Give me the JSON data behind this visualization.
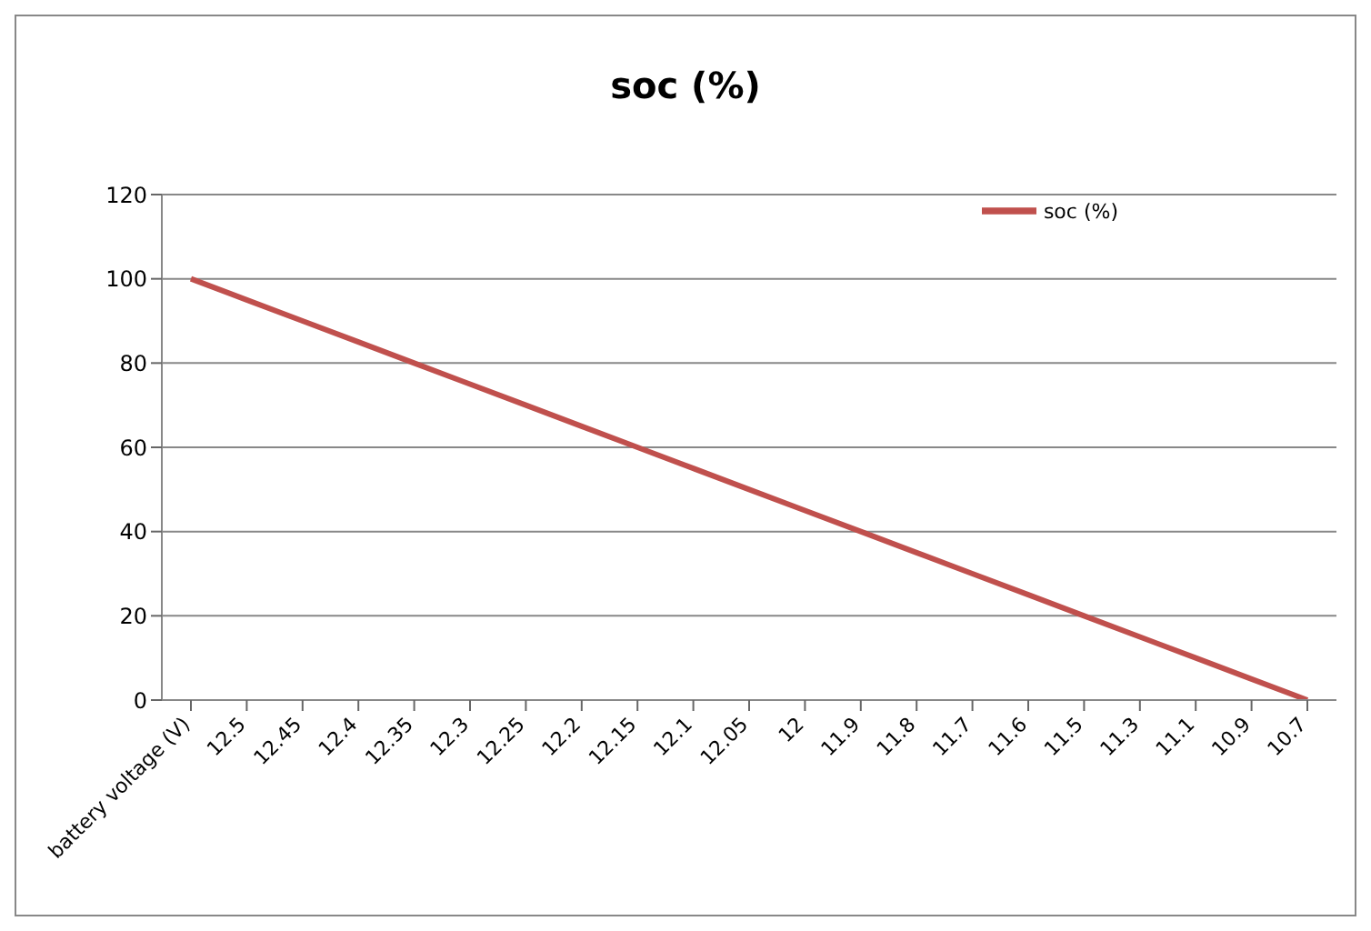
{
  "chart_data": {
    "type": "line",
    "title": "soc (%)",
    "categories": [
      "battery voltage (V)",
      "12.5",
      "12.45",
      "12.4",
      "12.35",
      "12.3",
      "12.25",
      "12.2",
      "12.15",
      "12.1",
      "12.05",
      "12",
      "11.9",
      "11.8",
      "11.7",
      "11.6",
      "11.5",
      "11.3",
      "11.1",
      "10.9",
      "10.7"
    ],
    "series": [
      {
        "name": "soc (%)",
        "color": "#c0504d",
        "values": [
          100,
          95,
          90,
          85,
          80,
          75,
          70,
          65,
          60,
          55,
          50,
          45,
          40,
          35,
          30,
          25,
          20,
          15,
          10,
          5,
          0
        ]
      }
    ],
    "ylim": [
      0,
      120
    ],
    "yticks": [
      0,
      20,
      40,
      60,
      80,
      100,
      120
    ],
    "grid": "y",
    "legend": "top right",
    "marker": "none",
    "line_style": "solid"
  }
}
